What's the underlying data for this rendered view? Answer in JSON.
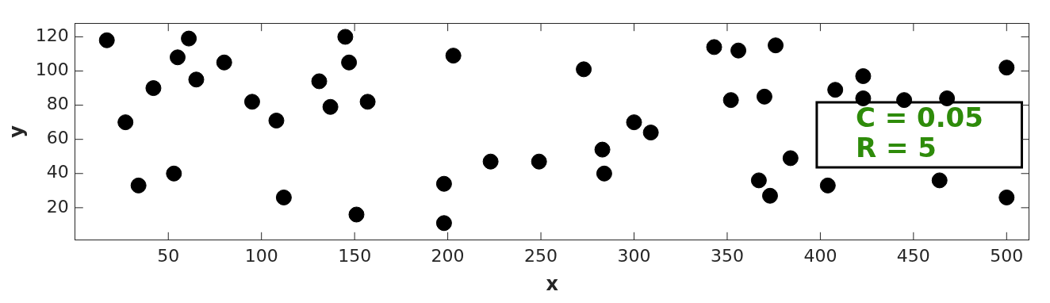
{
  "chart_data": {
    "type": "scatter",
    "xlabel": "x",
    "ylabel": "y",
    "xlim": [
      0,
      512
    ],
    "ylim": [
      1,
      128
    ],
    "xticks": [
      50,
      100,
      150,
      200,
      250,
      300,
      350,
      400,
      450,
      500
    ],
    "yticks": [
      20,
      40,
      60,
      80,
      100,
      120
    ],
    "grid": false,
    "legend": false,
    "marker": "circle",
    "annotations": [
      "C = 0.05",
      "R = 5"
    ],
    "series": [
      {
        "color": "#000000",
        "x": [
          17,
          27,
          34,
          42,
          53,
          55,
          61,
          65,
          80,
          95,
          108,
          112,
          131,
          137,
          145,
          147,
          151,
          157,
          198,
          198,
          203,
          223,
          249,
          273,
          283,
          284,
          300,
          309,
          343,
          352,
          356,
          367,
          370,
          373,
          376,
          384,
          404,
          408,
          423,
          423,
          445,
          464,
          468,
          500,
          500
        ],
        "values": [
          118,
          70,
          33,
          90,
          40,
          108,
          119,
          95,
          105,
          82,
          71,
          26,
          94,
          79,
          120,
          105,
          16,
          82,
          34,
          11,
          109,
          47,
          47,
          101,
          54,
          40,
          70,
          64,
          114,
          83,
          112,
          36,
          85,
          27,
          115,
          49,
          33,
          89,
          97,
          84,
          83,
          36,
          84,
          102,
          26
        ]
      }
    ]
  }
}
